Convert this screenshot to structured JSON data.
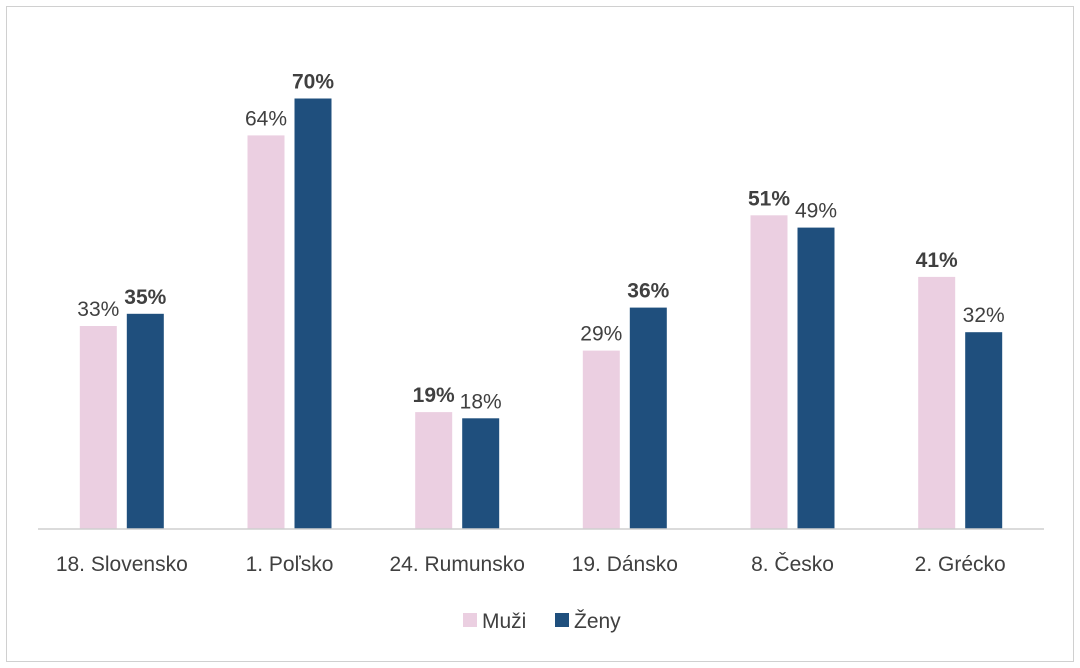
{
  "chart_data": {
    "type": "bar",
    "categories": [
      "18. Slovensko",
      "1. Poľsko",
      "24. Rumunsko",
      "19. Dánsko",
      "8. Česko",
      "2. Grécko"
    ],
    "series": [
      {
        "name": "Muži",
        "color": "#ebcfe1",
        "values": [
          33,
          64,
          19,
          29,
          51,
          41
        ],
        "labels": [
          "33%",
          "64%",
          "19%",
          "29%",
          "51%",
          "41%"
        ]
      },
      {
        "name": "Ženy",
        "color": "#1f4f7d",
        "values": [
          35,
          70,
          18,
          36,
          49,
          32
        ],
        "labels": [
          "35%",
          "70%",
          "18%",
          "36%",
          "49%",
          "32%"
        ]
      }
    ],
    "ylim": [
      0,
      75
    ],
    "unit": "%",
    "grid": false,
    "legend": "bottom-center",
    "label_color": "#404040",
    "axis_color": "#cfcfcf"
  }
}
